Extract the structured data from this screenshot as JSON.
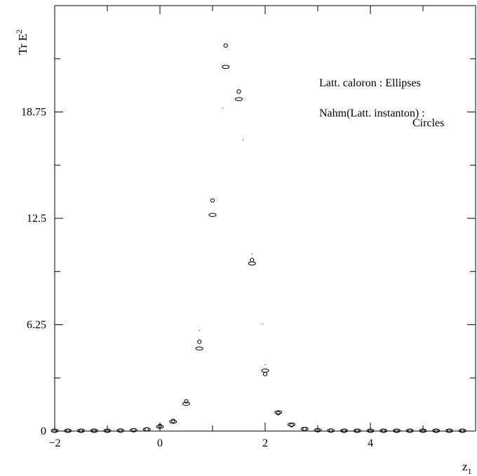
{
  "chart_data": {
    "type": "scatter",
    "xlabel": "z",
    "xlabel_sub": "1",
    "ylabel": "Tr E",
    "ylabel_sup": "2",
    "xlim": [
      -2,
      6
    ],
    "ylim": [
      0,
      25
    ],
    "x_ticks": [
      {
        "value": -2,
        "label": "−2"
      },
      {
        "value": 0,
        "label": "0"
      },
      {
        "value": 2,
        "label": "2"
      },
      {
        "value": 4,
        "label": "4"
      }
    ],
    "y_ticks": [
      {
        "value": 0,
        "label": "0"
      },
      {
        "value": 6.25,
        "label": "6.25"
      },
      {
        "value": 12.5,
        "label": "12.5"
      },
      {
        "value": 18.75,
        "label": "18.75"
      }
    ],
    "legend": [
      "Latt. caloron : Ellipses",
      "Nahm(Latt. instanton) :",
      "Circles"
    ],
    "series": [
      {
        "marker": "ellipse",
        "points": [
          [
            -2,
            0.02
          ],
          [
            -1.75,
            0.02
          ],
          [
            -1.5,
            0.02
          ],
          [
            -1.25,
            0.02
          ],
          [
            -1,
            0.02
          ],
          [
            -0.75,
            0.03
          ],
          [
            -0.5,
            0.05
          ],
          [
            -0.25,
            0.1
          ],
          [
            0,
            0.25
          ],
          [
            0.25,
            0.55
          ],
          [
            0.5,
            1.6
          ],
          [
            0.75,
            4.85
          ],
          [
            1,
            12.7
          ],
          [
            1.25,
            21.4
          ],
          [
            1.5,
            19.5
          ],
          [
            1.75,
            9.85
          ],
          [
            2,
            3.55
          ],
          [
            2.25,
            1.1
          ],
          [
            2.5,
            0.38
          ],
          [
            2.75,
            0.13
          ],
          [
            3,
            0.05
          ],
          [
            3.25,
            0.03
          ],
          [
            3.5,
            0.02
          ],
          [
            3.75,
            0.02
          ],
          [
            4,
            0.02
          ],
          [
            4.25,
            0.02
          ],
          [
            4.5,
            0.02
          ],
          [
            4.75,
            0.02
          ],
          [
            5,
            0.02
          ],
          [
            5.25,
            0.02
          ],
          [
            5.5,
            0.02
          ],
          [
            5.75,
            0.02
          ]
        ]
      },
      {
        "marker": "circle",
        "points": [
          [
            -2,
            0.02
          ],
          [
            -1.75,
            0.02
          ],
          [
            -1.5,
            0.02
          ],
          [
            -1.25,
            0.02
          ],
          [
            -1,
            0.02
          ],
          [
            -0.75,
            0.03
          ],
          [
            -0.5,
            0.05
          ],
          [
            -0.25,
            0.1
          ],
          [
            0,
            0.3
          ],
          [
            0.25,
            0.6
          ],
          [
            0.5,
            1.75
          ],
          [
            0.75,
            5.25
          ],
          [
            1,
            13.55
          ],
          [
            1.25,
            22.65
          ],
          [
            1.5,
            19.95
          ],
          [
            1.75,
            10.05
          ],
          [
            2,
            3.35
          ],
          [
            2.25,
            1.05
          ],
          [
            2.5,
            0.35
          ],
          [
            2.75,
            0.12
          ],
          [
            3,
            0.05
          ],
          [
            3.25,
            0.03
          ],
          [
            3.5,
            0.02
          ],
          [
            3.75,
            0.02
          ],
          [
            4,
            0.02
          ],
          [
            4.25,
            0.02
          ],
          [
            4.5,
            0.02
          ],
          [
            4.75,
            0.02
          ],
          [
            5,
            0.02
          ],
          [
            5.25,
            0.02
          ],
          [
            5.5,
            0.02
          ],
          [
            5.75,
            0.02
          ]
        ]
      },
      {
        "marker": "dot",
        "points": [
          [
            0.75,
            5.9
          ],
          [
            1.2,
            19.0
          ],
          [
            1.58,
            17.1
          ],
          [
            1.75,
            10.4
          ],
          [
            1.95,
            6.3
          ],
          [
            2.0,
            3.9
          ]
        ]
      }
    ]
  }
}
